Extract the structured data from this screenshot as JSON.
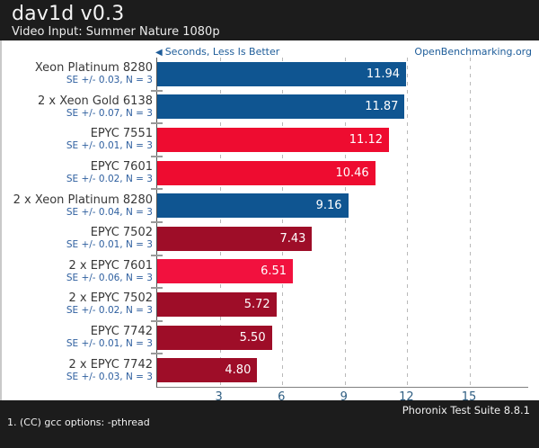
{
  "header": {
    "title": "dav1d v0.3",
    "subtitle": "Video Input: Summer Nature 1080p"
  },
  "plot_header": {
    "better_note": "Seconds, Less Is Better",
    "arrow": "◀",
    "site_link": "OpenBenchmarking.org",
    "accent_color": "#1d5c99"
  },
  "chart_data": {
    "type": "bar",
    "orientation": "horizontal",
    "title": "dav1d v0.3",
    "subtitle": "Video Input: Summer Nature 1080p",
    "value_unit": "Seconds",
    "less_is_better": true,
    "xlim": [
      0,
      17.8
    ],
    "xticks": [
      3,
      6,
      9,
      12,
      15
    ],
    "gridlines": [
      3,
      6,
      9,
      12,
      15
    ],
    "grid": "vertical-dashed",
    "legend_position": "none",
    "palette": {
      "blue": "#0f5591",
      "red": "#ee0c30",
      "light_red": "#f2113e",
      "dark_red": "#9e0d28"
    },
    "bars": [
      {
        "label": "Xeon Platinum 8280",
        "se_note": "SE +/- 0.03, N = 3",
        "value": 11.94,
        "display_value": "11.94",
        "color": "blue"
      },
      {
        "label": "2 x Xeon Gold 6138",
        "se_note": "SE +/- 0.07, N = 3",
        "value": 11.87,
        "display_value": "11.87",
        "color": "blue"
      },
      {
        "label": "EPYC 7551",
        "se_note": "SE +/- 0.01, N = 3",
        "value": 11.12,
        "display_value": "11.12",
        "color": "red"
      },
      {
        "label": "EPYC 7601",
        "se_note": "SE +/- 0.02, N = 3",
        "value": 10.46,
        "display_value": "10.46",
        "color": "red"
      },
      {
        "label": "2 x Xeon Platinum 8280",
        "se_note": "SE +/- 0.04, N = 3",
        "value": 9.16,
        "display_value": "9.16",
        "color": "blue"
      },
      {
        "label": "EPYC 7502",
        "se_note": "SE +/- 0.01, N = 3",
        "value": 7.43,
        "display_value": "7.43",
        "color": "dark_red"
      },
      {
        "label": "2 x EPYC 7601",
        "se_note": "SE +/- 0.06, N = 3",
        "value": 6.51,
        "display_value": "6.51",
        "color": "light_red"
      },
      {
        "label": "2 x EPYC 7502",
        "se_note": "SE +/- 0.02, N = 3",
        "value": 5.72,
        "display_value": "5.72",
        "color": "dark_red"
      },
      {
        "label": "EPYC 7742",
        "se_note": "SE +/- 0.01, N = 3",
        "value": 5.5,
        "display_value": "5.50",
        "color": "dark_red"
      },
      {
        "label": "2 x EPYC 7742",
        "se_note": "SE +/- 0.03, N = 3",
        "value": 4.8,
        "display_value": "4.80",
        "color": "dark_red"
      }
    ]
  },
  "footer": {
    "note": "1. (CC) gcc options: -pthread",
    "suite": "Phoronix Test Suite 8.8.1"
  }
}
